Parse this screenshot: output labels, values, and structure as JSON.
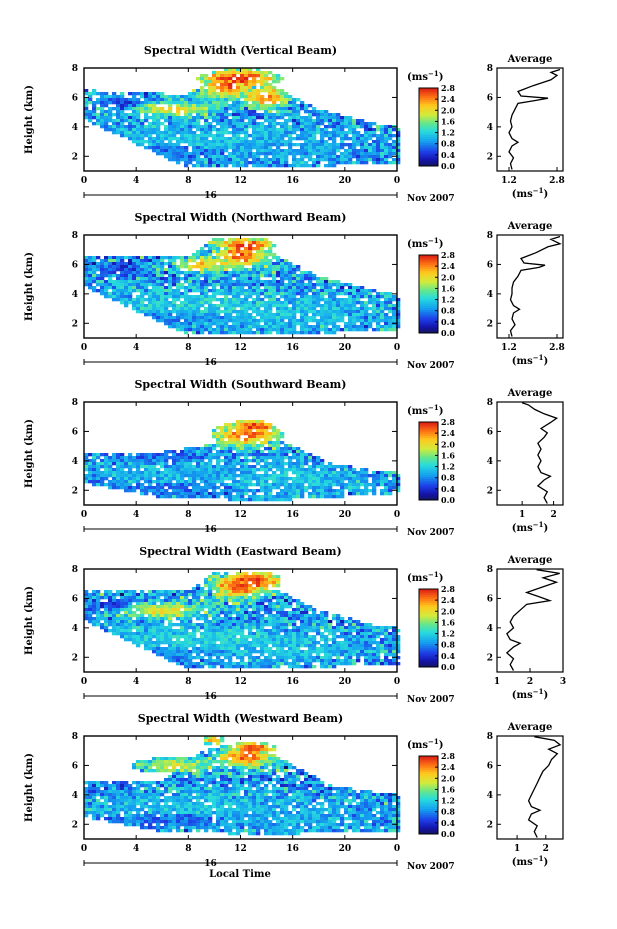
{
  "chart_data": [
    {
      "type": "heatmap",
      "title": "Spectral Width (Vertical Beam)",
      "ylabel": "Height (km)",
      "xlabel": "",
      "x_ticks": [
        "0",
        "4",
        "8",
        "12",
        "16",
        "20",
        "0"
      ],
      "y_ticks": [
        "2",
        "4",
        "6",
        "8"
      ],
      "xlim": [
        0,
        24
      ],
      "ylim": [
        1,
        8
      ],
      "day_label": "16",
      "date_label": "Nov 2007",
      "colorbar": {
        "label": "(ms",
        "label_sup": "−1",
        "label_end": ")",
        "ticks": [
          "0.0",
          "0.4",
          "0.8",
          "1.2",
          "1.6",
          "2.0",
          "2.4",
          "2.8"
        ],
        "range": [
          0,
          2.8
        ]
      },
      "average": {
        "title": "Average",
        "x_ticks": [
          "1.2",
          "2.8"
        ],
        "xlim": [
          0.8,
          3.0
        ],
        "xlabel": "(ms",
        "xlabel_sup": "−1",
        "xlabel_end": ")",
        "y_ticks": [
          "2",
          "4",
          "6",
          "8"
        ],
        "profile": [
          [
            1.3,
            1.1
          ],
          [
            1.25,
            1.5
          ],
          [
            1.35,
            1.9
          ],
          [
            1.2,
            2.3
          ],
          [
            1.3,
            2.7
          ],
          [
            1.5,
            2.95
          ],
          [
            1.3,
            3.2
          ],
          [
            1.2,
            3.6
          ],
          [
            1.3,
            4.0
          ],
          [
            1.25,
            4.4
          ],
          [
            1.3,
            4.8
          ],
          [
            1.4,
            5.2
          ],
          [
            1.5,
            5.6
          ],
          [
            2.1,
            5.8
          ],
          [
            2.5,
            5.95
          ],
          [
            1.6,
            6.1
          ],
          [
            1.5,
            6.4
          ],
          [
            2.0,
            6.8
          ],
          [
            2.6,
            7.2
          ],
          [
            2.8,
            7.5
          ],
          [
            2.6,
            7.7
          ],
          [
            2.9,
            7.9
          ]
        ]
      },
      "field": {
        "blobs": [
          [
            9,
            3.2,
            9,
            1.0,
            1.1
          ],
          [
            7,
            2.3,
            6,
            0.6,
            0.7
          ],
          [
            15,
            2.6,
            7,
            1.2,
            1.0
          ],
          [
            11,
            6.8,
            2,
            0.8,
            2.6
          ],
          [
            12,
            7.3,
            3,
            0.6,
            2.7
          ],
          [
            14,
            6.0,
            1.5,
            0.7,
            2.5
          ],
          [
            7,
            5.2,
            3,
            0.5,
            2.0
          ],
          [
            3,
            5.6,
            2,
            0.4,
            0.5
          ]
        ],
        "coverage": [
          [
            0,
            4.5,
            6.5
          ],
          [
            8,
            1.2,
            6.2
          ],
          [
            10,
            1.2,
            7.9
          ],
          [
            14,
            1.2,
            7.0
          ],
          [
            18,
            1.3,
            5.2
          ],
          [
            22,
            1.5,
            4.3
          ],
          [
            24,
            1.5,
            4.0
          ]
        ],
        "seed": 11
      }
    },
    {
      "type": "heatmap",
      "title": "Spectral Width (Northward Beam)",
      "ylabel": "Height (km)",
      "xlabel": "",
      "x_ticks": [
        "0",
        "4",
        "8",
        "12",
        "16",
        "20",
        "0"
      ],
      "y_ticks": [
        "2",
        "4",
        "6",
        "8"
      ],
      "xlim": [
        0,
        24
      ],
      "ylim": [
        1,
        8
      ],
      "day_label": "16",
      "date_label": "Nov 2007",
      "colorbar": {
        "label": "(ms",
        "label_sup": "−1",
        "label_end": ")",
        "ticks": [
          "0.0",
          "0.4",
          "0.8",
          "1.2",
          "1.6",
          "2.0",
          "2.4",
          "2.8"
        ],
        "range": [
          0,
          2.8
        ]
      },
      "average": {
        "title": "Average",
        "x_ticks": [
          "1.2",
          "2.8"
        ],
        "xlim": [
          0.8,
          3.0
        ],
        "xlabel": "(ms",
        "xlabel_sup": "−1",
        "xlabel_end": ")",
        "y_ticks": [
          "2",
          "4",
          "6",
          "8"
        ],
        "profile": [
          [
            1.3,
            1.1
          ],
          [
            1.25,
            1.5
          ],
          [
            1.4,
            1.9
          ],
          [
            1.3,
            2.3
          ],
          [
            1.35,
            2.7
          ],
          [
            1.55,
            2.95
          ],
          [
            1.35,
            3.2
          ],
          [
            1.25,
            3.6
          ],
          [
            1.3,
            4.0
          ],
          [
            1.3,
            4.4
          ],
          [
            1.35,
            4.8
          ],
          [
            1.5,
            5.2
          ],
          [
            1.6,
            5.6
          ],
          [
            2.2,
            5.8
          ],
          [
            2.4,
            5.95
          ],
          [
            1.7,
            6.1
          ],
          [
            1.6,
            6.4
          ],
          [
            2.1,
            6.8
          ],
          [
            2.5,
            7.2
          ],
          [
            2.9,
            7.4
          ],
          [
            2.6,
            7.7
          ],
          [
            2.9,
            7.9
          ]
        ]
      },
      "field": {
        "blobs": [
          [
            9,
            3.2,
            9,
            1.0,
            1.2
          ],
          [
            7,
            2.4,
            6,
            0.6,
            0.8
          ],
          [
            15,
            2.6,
            7,
            1.2,
            1.1
          ],
          [
            12,
            6.6,
            2,
            0.8,
            2.6
          ],
          [
            12.5,
            7.3,
            2,
            0.5,
            2.7
          ],
          [
            9,
            6.0,
            2,
            0.5,
            2.2
          ],
          [
            3,
            5.6,
            2,
            0.4,
            0.5
          ]
        ],
        "coverage": [
          [
            0,
            4.5,
            6.5
          ],
          [
            8,
            1.2,
            6.5
          ],
          [
            10,
            1.2,
            7.9
          ],
          [
            14,
            1.2,
            7.0
          ],
          [
            18,
            1.3,
            5.2
          ],
          [
            22,
            1.5,
            4.3
          ],
          [
            24,
            1.5,
            4.0
          ]
        ],
        "seed": 23
      }
    },
    {
      "type": "heatmap",
      "title": "Spectral Width (Southward Beam)",
      "ylabel": "Height (km)",
      "xlabel": "",
      "x_ticks": [
        "0",
        "4",
        "8",
        "12",
        "16",
        "20",
        "0"
      ],
      "y_ticks": [
        "2",
        "4",
        "6",
        "8"
      ],
      "xlim": [
        0,
        24
      ],
      "ylim": [
        1,
        8
      ],
      "day_label": "16",
      "date_label": "Nov 2007",
      "colorbar": {
        "label": "(ms",
        "label_sup": "−1",
        "label_end": ")",
        "ticks": [
          "0.0",
          "0.4",
          "0.8",
          "1.2",
          "1.6",
          "2.0",
          "2.4",
          "2.8"
        ],
        "range": [
          0,
          2.8
        ]
      },
      "average": {
        "title": "Average",
        "x_ticks": [
          "1",
          "2"
        ],
        "xlim": [
          0.2,
          2.3
        ],
        "xlabel": "(ms",
        "xlabel_sup": "−1",
        "xlabel_end": ")",
        "y_ticks": [
          "2",
          "4",
          "6",
          "8"
        ],
        "profile": [
          [
            1.8,
            1.1
          ],
          [
            1.7,
            1.5
          ],
          [
            1.8,
            1.9
          ],
          [
            1.5,
            2.3
          ],
          [
            1.7,
            2.7
          ],
          [
            1.9,
            2.95
          ],
          [
            1.6,
            3.2
          ],
          [
            1.5,
            3.6
          ],
          [
            1.6,
            4.0
          ],
          [
            1.5,
            4.4
          ],
          [
            1.6,
            4.8
          ],
          [
            1.5,
            5.2
          ],
          [
            1.7,
            5.6
          ],
          [
            1.8,
            5.9
          ],
          [
            1.6,
            6.2
          ],
          [
            1.9,
            6.6
          ],
          [
            2.1,
            6.9
          ],
          [
            1.7,
            7.2
          ],
          [
            1.4,
            7.5
          ],
          [
            1.2,
            7.8
          ],
          [
            1.0,
            7.95
          ]
        ]
      },
      "field": {
        "blobs": [
          [
            9,
            3.1,
            9,
            1.0,
            1.0
          ],
          [
            7,
            2.2,
            6,
            0.6,
            0.7
          ],
          [
            15,
            2.8,
            7,
            1.2,
            1.1
          ],
          [
            12.5,
            5.8,
            2.5,
            0.8,
            2.6
          ],
          [
            13,
            6.3,
            1.5,
            0.5,
            2.7
          ],
          [
            6,
            4.4,
            4,
            0.5,
            0.7
          ]
        ],
        "coverage": [
          [
            0,
            2.5,
            4.6
          ],
          [
            6,
            1.5,
            4.6
          ],
          [
            9,
            1.5,
            5.0
          ],
          [
            12,
            1.3,
            6.8
          ],
          [
            15,
            1.3,
            5.5
          ],
          [
            19,
            1.5,
            3.8
          ],
          [
            24,
            1.8,
            3.2
          ]
        ],
        "seed": 37
      }
    },
    {
      "type": "heatmap",
      "title": "Spectral Width (Eastward Beam)",
      "ylabel": "Height (km)",
      "xlabel": "",
      "x_ticks": [
        "0",
        "4",
        "8",
        "12",
        "16",
        "20",
        "0"
      ],
      "y_ticks": [
        "2",
        "4",
        "6",
        "8"
      ],
      "xlim": [
        0,
        24
      ],
      "ylim": [
        1,
        8
      ],
      "day_label": "16",
      "date_label": "Nov 2007",
      "colorbar": {
        "label": "(ms",
        "label_sup": "−1",
        "label_end": ")",
        "ticks": [
          "0.0",
          "0.4",
          "0.8",
          "1.2",
          "1.6",
          "2.0",
          "2.4",
          "2.8"
        ],
        "range": [
          0,
          2.8
        ]
      },
      "average": {
        "title": "Average",
        "x_ticks": [
          "1",
          "2",
          "3"
        ],
        "xlim": [
          1.0,
          3.0
        ],
        "xlabel": "(ms",
        "xlabel_sup": "−1",
        "xlabel_end": ")",
        "y_ticks": [
          "2",
          "4",
          "6",
          "8"
        ],
        "profile": [
          [
            1.5,
            1.1
          ],
          [
            1.4,
            1.5
          ],
          [
            1.5,
            1.9
          ],
          [
            1.3,
            2.3
          ],
          [
            1.5,
            2.7
          ],
          [
            1.7,
            2.95
          ],
          [
            1.4,
            3.2
          ],
          [
            1.3,
            3.6
          ],
          [
            1.5,
            4.0
          ],
          [
            1.4,
            4.4
          ],
          [
            1.5,
            4.8
          ],
          [
            1.7,
            5.2
          ],
          [
            1.9,
            5.6
          ],
          [
            2.6,
            5.85
          ],
          [
            2.3,
            6.1
          ],
          [
            1.9,
            6.4
          ],
          [
            2.4,
            6.8
          ],
          [
            2.8,
            7.1
          ],
          [
            2.4,
            7.4
          ],
          [
            2.9,
            7.7
          ],
          [
            2.2,
            7.95
          ]
        ]
      },
      "field": {
        "blobs": [
          [
            9,
            3.2,
            9,
            1.0,
            1.2
          ],
          [
            7,
            2.3,
            6,
            0.6,
            0.8
          ],
          [
            15,
            2.6,
            7,
            1.2,
            1.1
          ],
          [
            12,
            6.8,
            2,
            0.8,
            2.7
          ],
          [
            13,
            7.2,
            2,
            0.6,
            2.7
          ],
          [
            6,
            5.2,
            3,
            0.5,
            2.1
          ],
          [
            2,
            5.6,
            2,
            0.4,
            0.5
          ]
        ],
        "coverage": [
          [
            0,
            4.5,
            6.5
          ],
          [
            8,
            1.2,
            6.5
          ],
          [
            10,
            1.2,
            7.9
          ],
          [
            14,
            1.2,
            7.0
          ],
          [
            18,
            1.3,
            5.2
          ],
          [
            22,
            1.5,
            4.3
          ],
          [
            24,
            1.5,
            4.0
          ]
        ],
        "seed": 41
      }
    },
    {
      "type": "heatmap",
      "title": "Spectral Width (Westward Beam)",
      "ylabel": "Height (km)",
      "xlabel": "Local Time",
      "x_ticks": [
        "0",
        "4",
        "8",
        "12",
        "16",
        "20",
        "0"
      ],
      "y_ticks": [
        "2",
        "4",
        "6",
        "8"
      ],
      "xlim": [
        0,
        24
      ],
      "ylim": [
        1,
        8
      ],
      "day_label": "16",
      "date_label": "Nov 2007",
      "colorbar": {
        "label": "(ms",
        "label_sup": "−1",
        "label_end": ")",
        "ticks": [
          "0.0",
          "0.4",
          "0.8",
          "1.2",
          "1.6",
          "2.0",
          "2.4",
          "2.8"
        ],
        "range": [
          0,
          2.8
        ]
      },
      "average": {
        "title": "Average",
        "x_ticks": [
          "1",
          "2"
        ],
        "xlim": [
          0.3,
          2.6
        ],
        "xlabel": "(ms",
        "xlabel_sup": "−1",
        "xlabel_end": ")",
        "y_ticks": [
          "2",
          "4",
          "6",
          "8"
        ],
        "profile": [
          [
            1.7,
            1.1
          ],
          [
            1.6,
            1.5
          ],
          [
            1.7,
            1.9
          ],
          [
            1.4,
            2.3
          ],
          [
            1.5,
            2.7
          ],
          [
            1.8,
            2.95
          ],
          [
            1.5,
            3.2
          ],
          [
            1.4,
            3.6
          ],
          [
            1.5,
            4.0
          ],
          [
            1.6,
            4.4
          ],
          [
            1.7,
            4.8
          ],
          [
            1.8,
            5.2
          ],
          [
            1.9,
            5.6
          ],
          [
            2.1,
            6.0
          ],
          [
            2.2,
            6.4
          ],
          [
            2.4,
            6.8
          ],
          [
            2.1,
            7.1
          ],
          [
            2.5,
            7.4
          ],
          [
            2.3,
            7.7
          ],
          [
            1.6,
            7.95
          ]
        ]
      },
      "field": {
        "blobs": [
          [
            9,
            3.2,
            9,
            1.0,
            1.1
          ],
          [
            7,
            2.3,
            6,
            0.6,
            0.7
          ],
          [
            15,
            2.6,
            7,
            1.2,
            1.0
          ],
          [
            12.5,
            6.6,
            2,
            0.7,
            2.6
          ],
          [
            13,
            7.2,
            1.5,
            0.4,
            2.7
          ],
          [
            7,
            6.0,
            3,
            0.5,
            1.9
          ],
          [
            10,
            7.7,
            0.8,
            0.3,
            2.4
          ]
        ],
        "coverage": [
          [
            0,
            2.5,
            5.0
          ],
          [
            6,
            1.5,
            5.0
          ],
          [
            9,
            1.5,
            7.0
          ],
          [
            12,
            1.3,
            7.6
          ],
          [
            15,
            1.3,
            6.5
          ],
          [
            19,
            1.5,
            4.6
          ],
          [
            24,
            1.5,
            4.0
          ]
        ],
        "seed": 53
      }
    }
  ]
}
